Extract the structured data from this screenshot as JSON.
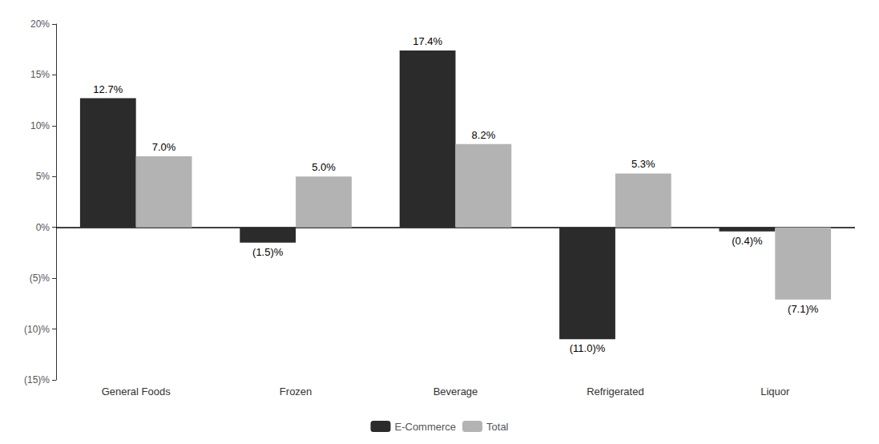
{
  "chart_data": {
    "type": "bar",
    "categories": [
      "General Foods",
      "Frozen",
      "Beverage",
      "Refrigerated",
      "Liquor"
    ],
    "series": [
      {
        "name": "E-Commerce",
        "color": "#2b2b2b",
        "values": [
          12.7,
          -1.5,
          17.4,
          -11.0,
          -0.4
        ],
        "value_labels": [
          "12.7%",
          "(1.5)%",
          "17.4%",
          "(11.0)%",
          "(0.4)%"
        ]
      },
      {
        "name": "Total",
        "color": "#b3b3b3",
        "values": [
          7.0,
          5.0,
          8.2,
          5.3,
          -7.1
        ],
        "value_labels": [
          "7.0%",
          "5.0%",
          "8.2%",
          "5.3%",
          "(7.1)%"
        ]
      }
    ],
    "ylim": [
      -15,
      20
    ],
    "yticks": [
      {
        "value": -15,
        "label": "(15)%"
      },
      {
        "value": -10,
        "label": "(10)%"
      },
      {
        "value": -5,
        "label": "(5)%"
      },
      {
        "value": 0,
        "label": "0%"
      },
      {
        "value": 5,
        "label": "5%"
      },
      {
        "value": 10,
        "label": "10%"
      },
      {
        "value": 15,
        "label": "15%"
      },
      {
        "value": 20,
        "label": "20%"
      }
    ],
    "grid": false,
    "legend": "bottom",
    "data_labels": true
  }
}
